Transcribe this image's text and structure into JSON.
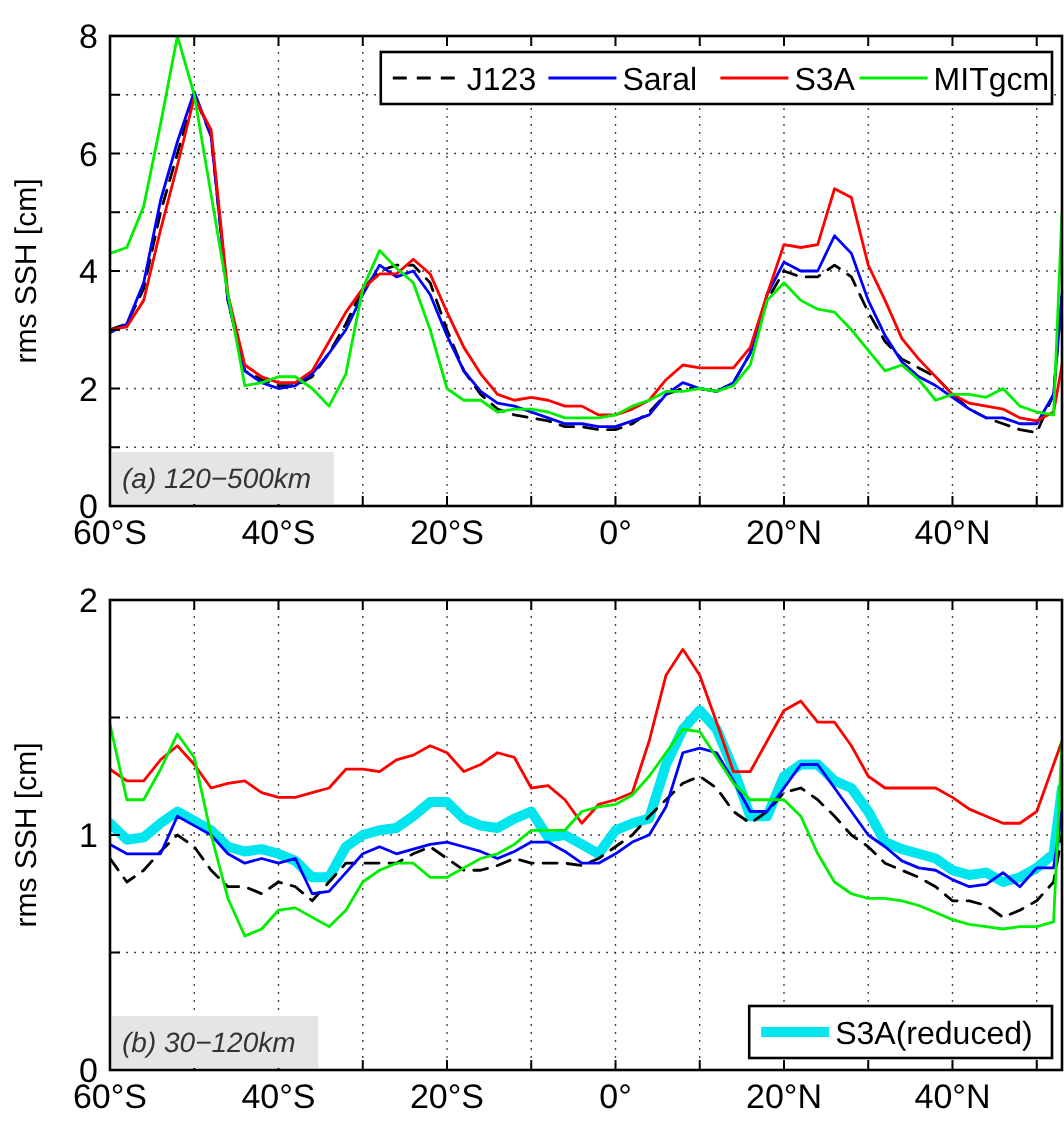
{
  "chart_data": [
    {
      "type": "line",
      "ylabel": "rms SSH [cm]",
      "annotations": [
        "(a) 120−500km"
      ],
      "legend": "top right",
      "grid": true,
      "x": [
        -60,
        -58,
        -56,
        -54,
        -52,
        -50,
        -48,
        -46,
        -44,
        -42,
        -40,
        -38,
        -36,
        -34,
        -32,
        -30,
        -28,
        -26,
        -24,
        -22,
        -20,
        -18,
        -16,
        -14,
        -12,
        -10,
        -8,
        -6,
        -4,
        -2,
        0,
        2,
        4,
        6,
        8,
        10,
        12,
        14,
        16,
        18,
        20,
        22,
        24,
        26,
        28,
        30,
        32,
        34,
        36,
        38,
        40,
        42,
        44,
        46,
        48,
        50,
        52,
        53
      ],
      "xlim": [
        -60,
        53
      ],
      "xticks": [
        {
          "value": -60,
          "label": "60°S"
        },
        {
          "value": -50,
          "label": null
        },
        {
          "value": -40,
          "label": "40°S"
        },
        {
          "value": -30,
          "label": null
        },
        {
          "value": -20,
          "label": "20°S"
        },
        {
          "value": -10,
          "label": null
        },
        {
          "value": 0,
          "label": "0°"
        },
        {
          "value": 10,
          "label": null
        },
        {
          "value": 20,
          "label": "20°N"
        },
        {
          "value": 30,
          "label": null
        },
        {
          "value": 40,
          "label": "40°N"
        },
        {
          "value": 50,
          "label": null
        }
      ],
      "ylim": [
        0,
        8
      ],
      "yticks": [
        0,
        {
          "value": 1,
          "label": null
        },
        2,
        {
          "value": 3,
          "label": null
        },
        4,
        {
          "value": 5,
          "label": null
        },
        6,
        {
          "value": 7,
          "label": null
        },
        8
      ],
      "series": [
        {
          "name": "J123",
          "color": "#000000",
          "line_style": "dashed",
          "values": [
            3.0,
            3.1,
            3.7,
            5.0,
            6.0,
            7.0,
            6.3,
            3.5,
            2.3,
            2.15,
            2.05,
            2.05,
            2.2,
            2.6,
            3.1,
            3.7,
            4.0,
            4.1,
            4.1,
            3.8,
            3.0,
            2.3,
            1.9,
            1.65,
            1.55,
            1.5,
            1.45,
            1.35,
            1.35,
            1.3,
            1.3,
            1.4,
            1.6,
            1.9,
            2.0,
            2.0,
            1.95,
            2.1,
            2.6,
            3.5,
            4.0,
            3.9,
            3.9,
            4.1,
            3.9,
            3.3,
            2.8,
            2.5,
            2.35,
            2.2,
            1.9,
            1.65,
            1.5,
            1.4,
            1.3,
            1.25,
            1.9,
            3.6
          ]
        },
        {
          "name": "Saral",
          "color": "#0000ff",
          "values": [
            2.95,
            3.1,
            3.8,
            5.2,
            6.2,
            7.05,
            6.3,
            3.5,
            2.3,
            2.1,
            2.0,
            2.05,
            2.25,
            2.6,
            3.0,
            3.6,
            4.1,
            3.9,
            4.0,
            3.6,
            2.9,
            2.3,
            1.95,
            1.75,
            1.7,
            1.6,
            1.5,
            1.4,
            1.4,
            1.35,
            1.35,
            1.45,
            1.55,
            1.9,
            2.1,
            2.0,
            1.95,
            2.1,
            2.6,
            3.6,
            4.15,
            4.0,
            4.0,
            4.6,
            4.3,
            3.5,
            2.9,
            2.45,
            2.2,
            2.05,
            1.85,
            1.65,
            1.5,
            1.5,
            1.4,
            1.4,
            1.9,
            3.6
          ]
        },
        {
          "name": "S3A",
          "color": "#ff0000",
          "values": [
            3.0,
            3.05,
            3.5,
            4.7,
            5.8,
            6.95,
            6.4,
            3.6,
            2.4,
            2.2,
            2.1,
            2.1,
            2.3,
            2.8,
            3.3,
            3.7,
            3.95,
            3.95,
            4.2,
            3.95,
            3.3,
            2.7,
            2.25,
            1.9,
            1.8,
            1.85,
            1.8,
            1.7,
            1.7,
            1.55,
            1.55,
            1.65,
            1.8,
            2.15,
            2.4,
            2.35,
            2.35,
            2.35,
            2.7,
            3.6,
            4.45,
            4.4,
            4.45,
            5.4,
            5.25,
            4.1,
            3.5,
            2.85,
            2.5,
            2.2,
            1.9,
            1.75,
            1.7,
            1.65,
            1.5,
            1.45,
            1.6,
            2.4
          ]
        },
        {
          "name": "MITgcm",
          "color": "#00ee00",
          "values": [
            4.3,
            4.4,
            5.1,
            6.5,
            8.0,
            7.0,
            5.3,
            3.6,
            2.05,
            2.1,
            2.2,
            2.2,
            2.0,
            1.7,
            2.25,
            3.7,
            4.35,
            4.05,
            3.8,
            3.0,
            2.0,
            1.8,
            1.8,
            1.6,
            1.65,
            1.65,
            1.6,
            1.5,
            1.5,
            1.5,
            1.55,
            1.7,
            1.8,
            1.95,
            1.95,
            2.0,
            1.95,
            2.05,
            2.4,
            3.5,
            3.8,
            3.5,
            3.35,
            3.3,
            3.0,
            2.65,
            2.3,
            2.4,
            2.15,
            1.8,
            1.9,
            1.9,
            1.85,
            2.0,
            1.7,
            1.6,
            1.55,
            5.0
          ]
        }
      ]
    },
    {
      "type": "line",
      "ylabel": "rms SSH [cm]",
      "annotations": [
        "(b) 30−120km"
      ],
      "legend": "bottom right",
      "grid": true,
      "x": [
        -60,
        -58,
        -56,
        -54,
        -52,
        -50,
        -48,
        -46,
        -44,
        -42,
        -40,
        -38,
        -36,
        -34,
        -32,
        -30,
        -28,
        -26,
        -24,
        -22,
        -20,
        -18,
        -16,
        -14,
        -12,
        -10,
        -8,
        -6,
        -4,
        -2,
        0,
        2,
        4,
        6,
        8,
        10,
        12,
        14,
        16,
        18,
        20,
        22,
        24,
        26,
        28,
        30,
        32,
        34,
        36,
        38,
        40,
        42,
        44,
        46,
        48,
        50,
        52,
        53
      ],
      "xlim": [
        -60,
        53
      ],
      "xticks": [
        {
          "value": -60,
          "label": "60°S"
        },
        {
          "value": -50,
          "label": null
        },
        {
          "value": -40,
          "label": "40°S"
        },
        {
          "value": -30,
          "label": null
        },
        {
          "value": -20,
          "label": "20°S"
        },
        {
          "value": -10,
          "label": null
        },
        {
          "value": 0,
          "label": "0°"
        },
        {
          "value": 10,
          "label": null
        },
        {
          "value": 20,
          "label": "20°N"
        },
        {
          "value": 30,
          "label": null
        },
        {
          "value": 40,
          "label": "40°N"
        },
        {
          "value": 50,
          "label": null
        }
      ],
      "ylim": [
        0,
        2
      ],
      "yticks": [
        0,
        {
          "value": 0.5,
          "label": null
        },
        1,
        {
          "value": 1.5,
          "label": null
        },
        2
      ],
      "series": [
        {
          "name": "S3A(reduced)",
          "color": "#00e5ee",
          "values": [
            1.05,
            0.98,
            0.99,
            1.05,
            1.1,
            1.06,
            1.02,
            0.95,
            0.93,
            0.94,
            0.92,
            0.89,
            0.82,
            0.82,
            0.95,
            1.0,
            1.02,
            1.03,
            1.08,
            1.14,
            1.14,
            1.07,
            1.04,
            1.03,
            1.07,
            1.1,
            0.99,
            1.0,
            0.96,
            0.92,
            1.02,
            1.05,
            1.07,
            1.3,
            1.45,
            1.53,
            1.45,
            1.28,
            1.08,
            1.08,
            1.25,
            1.3,
            1.3,
            1.23,
            1.2,
            1.1,
            0.97,
            0.94,
            0.92,
            0.9,
            0.85,
            0.83,
            0.84,
            0.8,
            0.82,
            0.86,
            0.92,
            1.2
          ]
        },
        {
          "color": "#000000",
          "line_style": "dashed",
          "values": [
            0.9,
            0.8,
            0.85,
            0.93,
            1.0,
            0.95,
            0.85,
            0.78,
            0.78,
            0.75,
            0.8,
            0.78,
            0.72,
            0.8,
            0.88,
            0.88,
            0.88,
            0.88,
            0.92,
            0.95,
            0.9,
            0.85,
            0.85,
            0.87,
            0.9,
            0.88,
            0.88,
            0.88,
            0.87,
            0.9,
            0.95,
            1.0,
            1.08,
            1.15,
            1.22,
            1.25,
            1.2,
            1.1,
            1.05,
            1.1,
            1.18,
            1.2,
            1.15,
            1.08,
            1.0,
            0.95,
            0.88,
            0.85,
            0.82,
            0.78,
            0.72,
            0.72,
            0.7,
            0.65,
            0.68,
            0.72,
            0.8,
            1.0
          ]
        },
        {
          "color": "#0000ff",
          "values": [
            0.96,
            0.92,
            0.92,
            0.92,
            1.08,
            1.04,
            1.0,
            0.92,
            0.88,
            0.9,
            0.88,
            0.9,
            0.75,
            0.76,
            0.84,
            0.92,
            0.95,
            0.92,
            0.94,
            0.96,
            0.97,
            0.95,
            0.93,
            0.9,
            0.93,
            0.97,
            0.97,
            0.93,
            0.88,
            0.88,
            0.92,
            0.97,
            1.0,
            1.12,
            1.35,
            1.37,
            1.35,
            1.23,
            1.1,
            1.1,
            1.2,
            1.3,
            1.3,
            1.2,
            1.1,
            1.0,
            0.95,
            0.89,
            0.86,
            0.85,
            0.81,
            0.78,
            0.79,
            0.84,
            0.78,
            0.86,
            0.86,
            1.1
          ]
        },
        {
          "color": "#ff0000",
          "values": [
            1.28,
            1.23,
            1.23,
            1.32,
            1.38,
            1.3,
            1.2,
            1.22,
            1.23,
            1.18,
            1.16,
            1.16,
            1.18,
            1.2,
            1.28,
            1.28,
            1.27,
            1.32,
            1.34,
            1.38,
            1.35,
            1.27,
            1.3,
            1.35,
            1.33,
            1.2,
            1.21,
            1.15,
            1.05,
            1.13,
            1.15,
            1.18,
            1.4,
            1.68,
            1.79,
            1.68,
            1.48,
            1.27,
            1.27,
            1.4,
            1.53,
            1.57,
            1.48,
            1.48,
            1.38,
            1.25,
            1.2,
            1.2,
            1.2,
            1.2,
            1.16,
            1.11,
            1.08,
            1.05,
            1.05,
            1.1,
            1.3,
            1.4
          ]
        },
        {
          "color": "#00ee00",
          "values": [
            1.47,
            1.15,
            1.15,
            1.28,
            1.43,
            1.33,
            1.0,
            0.73,
            0.57,
            0.6,
            0.68,
            0.69,
            0.65,
            0.61,
            0.68,
            0.8,
            0.85,
            0.88,
            0.88,
            0.82,
            0.82,
            0.86,
            0.9,
            0.92,
            0.96,
            1.02,
            1.02,
            1.02,
            1.1,
            1.12,
            1.13,
            1.17,
            1.25,
            1.35,
            1.45,
            1.44,
            1.33,
            1.22,
            1.15,
            1.15,
            1.15,
            1.08,
            0.92,
            0.8,
            0.75,
            0.73,
            0.73,
            0.72,
            0.7,
            0.67,
            0.64,
            0.62,
            0.61,
            0.6,
            0.61,
            0.61,
            0.63,
            1.4
          ]
        }
      ]
    }
  ]
}
